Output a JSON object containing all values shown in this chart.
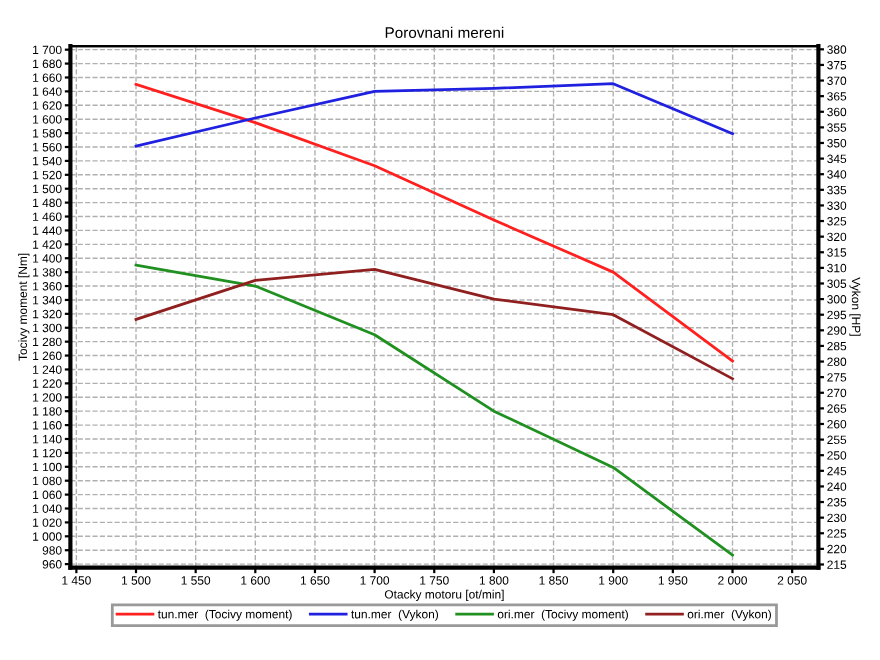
{
  "chart_data": {
    "type": "line",
    "title": "Porovnani mereni",
    "xlabel": "Otacky motoru [ot/min]",
    "ylabel": "Tocivy moment [Nm]",
    "y2label": "Vykon [HP]",
    "x": [
      1500,
      1600,
      1700,
      1800,
      1900,
      2000
    ],
    "series": [
      {
        "name": "tun.mer  (Tocivy moment)",
        "color": "#ff2020",
        "values": [
          1650,
          1595,
          1533,
          1455,
          1380,
          1252
        ]
      },
      {
        "name": "tun.mer  (Vykon)",
        "color": "#2020e0",
        "values": [
          349,
          358,
          366.5,
          367.5,
          369,
          353
        ],
        "axis": "y2"
      },
      {
        "name": "ori.mer  (Tocivy moment)",
        "color": "#209020",
        "values": [
          1390,
          1360,
          1290,
          1180,
          1099,
          973
        ]
      },
      {
        "name": "ori.mer  (Vykon)",
        "color": "#902020",
        "values": [
          293.5,
          306,
          309.5,
          300,
          295,
          274.5
        ],
        "axis": "y2"
      }
    ],
    "xlim": [
      1445,
      2072
    ],
    "xticks": [
      {
        "value": 1450,
        "label": "1 450"
      },
      {
        "value": 1500,
        "label": "1 500"
      },
      {
        "value": 1550,
        "label": "1 550"
      },
      {
        "value": 1600,
        "label": "1 600"
      },
      {
        "value": 1650,
        "label": "1 650"
      },
      {
        "value": 1700,
        "label": "1 700"
      },
      {
        "value": 1750,
        "label": "1 750"
      },
      {
        "value": 1800,
        "label": "1 800"
      },
      {
        "value": 1850,
        "label": "1 850"
      },
      {
        "value": 1900,
        "label": "1 900"
      },
      {
        "value": 1950,
        "label": "1 950"
      },
      {
        "value": 2000,
        "label": "2 000"
      },
      {
        "value": 2050,
        "label": "2 050"
      }
    ],
    "ylim": [
      955,
      1705
    ],
    "yticks": [
      960,
      980,
      {
        "value": 1000,
        "label": "1 000"
      },
      {
        "value": 1020,
        "label": "1 020"
      },
      {
        "value": 1040,
        "label": "1 040"
      },
      {
        "value": 1060,
        "label": "1 060"
      },
      {
        "value": 1080,
        "label": "1 080"
      },
      {
        "value": 1100,
        "label": "1 100"
      },
      {
        "value": 1120,
        "label": "1 120"
      },
      {
        "value": 1140,
        "label": "1 140"
      },
      {
        "value": 1160,
        "label": "1 160"
      },
      {
        "value": 1180,
        "label": "1 180"
      },
      {
        "value": 1200,
        "label": "1 200"
      },
      {
        "value": 1220,
        "label": "1 220"
      },
      {
        "value": 1240,
        "label": "1 240"
      },
      {
        "value": 1260,
        "label": "1 260"
      },
      {
        "value": 1280,
        "label": "1 280"
      },
      {
        "value": 1300,
        "label": "1 300"
      },
      {
        "value": 1320,
        "label": "1 320"
      },
      {
        "value": 1340,
        "label": "1 340"
      },
      {
        "value": 1360,
        "label": "1 360"
      },
      {
        "value": 1380,
        "label": "1 380"
      },
      {
        "value": 1400,
        "label": "1 400"
      },
      {
        "value": 1420,
        "label": "1 420"
      },
      {
        "value": 1440,
        "label": "1 440"
      },
      {
        "value": 1460,
        "label": "1 460"
      },
      {
        "value": 1480,
        "label": "1 480"
      },
      {
        "value": 1500,
        "label": "1 500"
      },
      {
        "value": 1520,
        "label": "1 520"
      },
      {
        "value": 1540,
        "label": "1 540"
      },
      {
        "value": 1560,
        "label": "1 560"
      },
      {
        "value": 1580,
        "label": "1 580"
      },
      {
        "value": 1600,
        "label": "1 600"
      },
      {
        "value": 1620,
        "label": "1 620"
      },
      {
        "value": 1640,
        "label": "1 640"
      },
      {
        "value": 1660,
        "label": "1 660"
      },
      {
        "value": 1680,
        "label": "1 680"
      },
      {
        "value": 1700,
        "label": "1 700"
      }
    ],
    "y2lim": [
      214,
      381
    ],
    "y2ticks": [
      215,
      220,
      225,
      230,
      235,
      240,
      245,
      250,
      255,
      260,
      265,
      270,
      275,
      280,
      285,
      290,
      295,
      300,
      305,
      310,
      315,
      320,
      325,
      330,
      335,
      340,
      345,
      350,
      355,
      360,
      365,
      370,
      375,
      380
    ],
    "grid": true,
    "legend": "bottom",
    "marker": "none",
    "line_style": "solid"
  }
}
